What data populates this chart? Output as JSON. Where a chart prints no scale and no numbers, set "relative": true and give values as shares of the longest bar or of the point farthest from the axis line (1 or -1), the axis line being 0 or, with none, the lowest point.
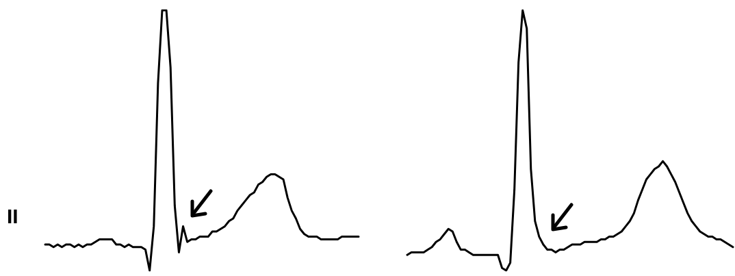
{
  "chart_data": [
    {
      "type": "line",
      "relative": true,
      "annotations": [
        "II"
      ],
      "categories": [
        null,
        null,
        null,
        null,
        null,
        null,
        null,
        null,
        null,
        null,
        null,
        null,
        null,
        null,
        null,
        null,
        null,
        null,
        null,
        null,
        null,
        null,
        null,
        null,
        null,
        null,
        null,
        null,
        null,
        null,
        null,
        null,
        null,
        null,
        null,
        null,
        null,
        null,
        null,
        null,
        null,
        null,
        null,
        null,
        null,
        null,
        null,
        null,
        null,
        null,
        null,
        null,
        null,
        null,
        null,
        null,
        null,
        null,
        null,
        null,
        null,
        null,
        null,
        null,
        null,
        null,
        null,
        null,
        null,
        null,
        null,
        null,
        null,
        null,
        null,
        null
      ],
      "series": [
        {
          "color": "#000000",
          "values": [
            0.1,
            0.1,
            0.09,
            0.1,
            0.09,
            0.1,
            0.1,
            0.09,
            0.1,
            0.09,
            0.1,
            0.1,
            0.11,
            0.12,
            0.12,
            0.12,
            0.12,
            0.1,
            0.1,
            0.09,
            0.1,
            0.09,
            0.09,
            0.09,
            0.08,
            0,
            0.17,
            0.72,
            1,
            1,
            0.78,
            0.25,
            0.07,
            0.17,
            0.11,
            0.12,
            0.12,
            0.13,
            0.13,
            0.13,
            0.15,
            0.15,
            0.16,
            0.17,
            0.19,
            0.2,
            0.23,
            0.25,
            0.27,
            0.29,
            0.3,
            0.33,
            0.34,
            0.36,
            0.37,
            0.37,
            0.36,
            0.35,
            0.28,
            0.23,
            0.2,
            0.16,
            0.14,
            0.13,
            0.13,
            0.13,
            0.12,
            0.12,
            0.12,
            0.12,
            0.12,
            0.13,
            0.13,
            0.13,
            0.13,
            0.13
          ]
        }
      ]
    },
    {
      "type": "line",
      "relative": true,
      "categories": [
        null,
        null,
        null,
        null,
        null,
        null,
        null,
        null,
        null,
        null,
        null,
        null,
        null,
        null,
        null,
        null,
        null,
        null,
        null,
        null,
        null,
        null,
        null,
        null,
        null,
        null,
        null,
        null,
        null,
        null,
        null,
        null,
        null,
        null,
        null,
        null,
        null,
        null,
        null,
        null,
        null,
        null,
        null,
        null,
        null,
        null,
        null,
        null,
        null,
        null,
        null,
        null,
        null,
        null,
        null,
        null,
        null,
        null,
        null,
        null,
        null,
        null,
        null,
        null,
        null,
        null,
        null,
        null,
        null,
        null,
        null,
        null,
        null,
        null,
        null,
        null,
        null,
        null,
        null,
        null
      ],
      "series": [
        {
          "color": "#000000",
          "values": [
            0.06,
            0.07,
            0.07,
            0.07,
            0.07,
            0.08,
            0.09,
            0.11,
            0.12,
            0.14,
            0.16,
            0.15,
            0.11,
            0.08,
            0.08,
            0.07,
            0.06,
            0.06,
            0.06,
            0.06,
            0.06,
            0.06,
            0.06,
            0.01,
            0,
            0.03,
            0.31,
            0.8,
            1,
            0.93,
            0.39,
            0.19,
            0.13,
            0.1,
            0.08,
            0.08,
            0.07,
            0.08,
            0.08,
            0.09,
            0.1,
            0.1,
            0.1,
            0.11,
            0.11,
            0.11,
            0.11,
            0.12,
            0.12,
            0.13,
            0.13,
            0.14,
            0.15,
            0.17,
            0.19,
            0.22,
            0.27,
            0.31,
            0.35,
            0.37,
            0.39,
            0.4,
            0.42,
            0.4,
            0.37,
            0.34,
            0.3,
            0.26,
            0.22,
            0.19,
            0.17,
            0.15,
            0.14,
            0.13,
            0.13,
            0.12,
            0.12,
            0.11,
            0.1,
            0.09
          ]
        }
      ]
    }
  ]
}
